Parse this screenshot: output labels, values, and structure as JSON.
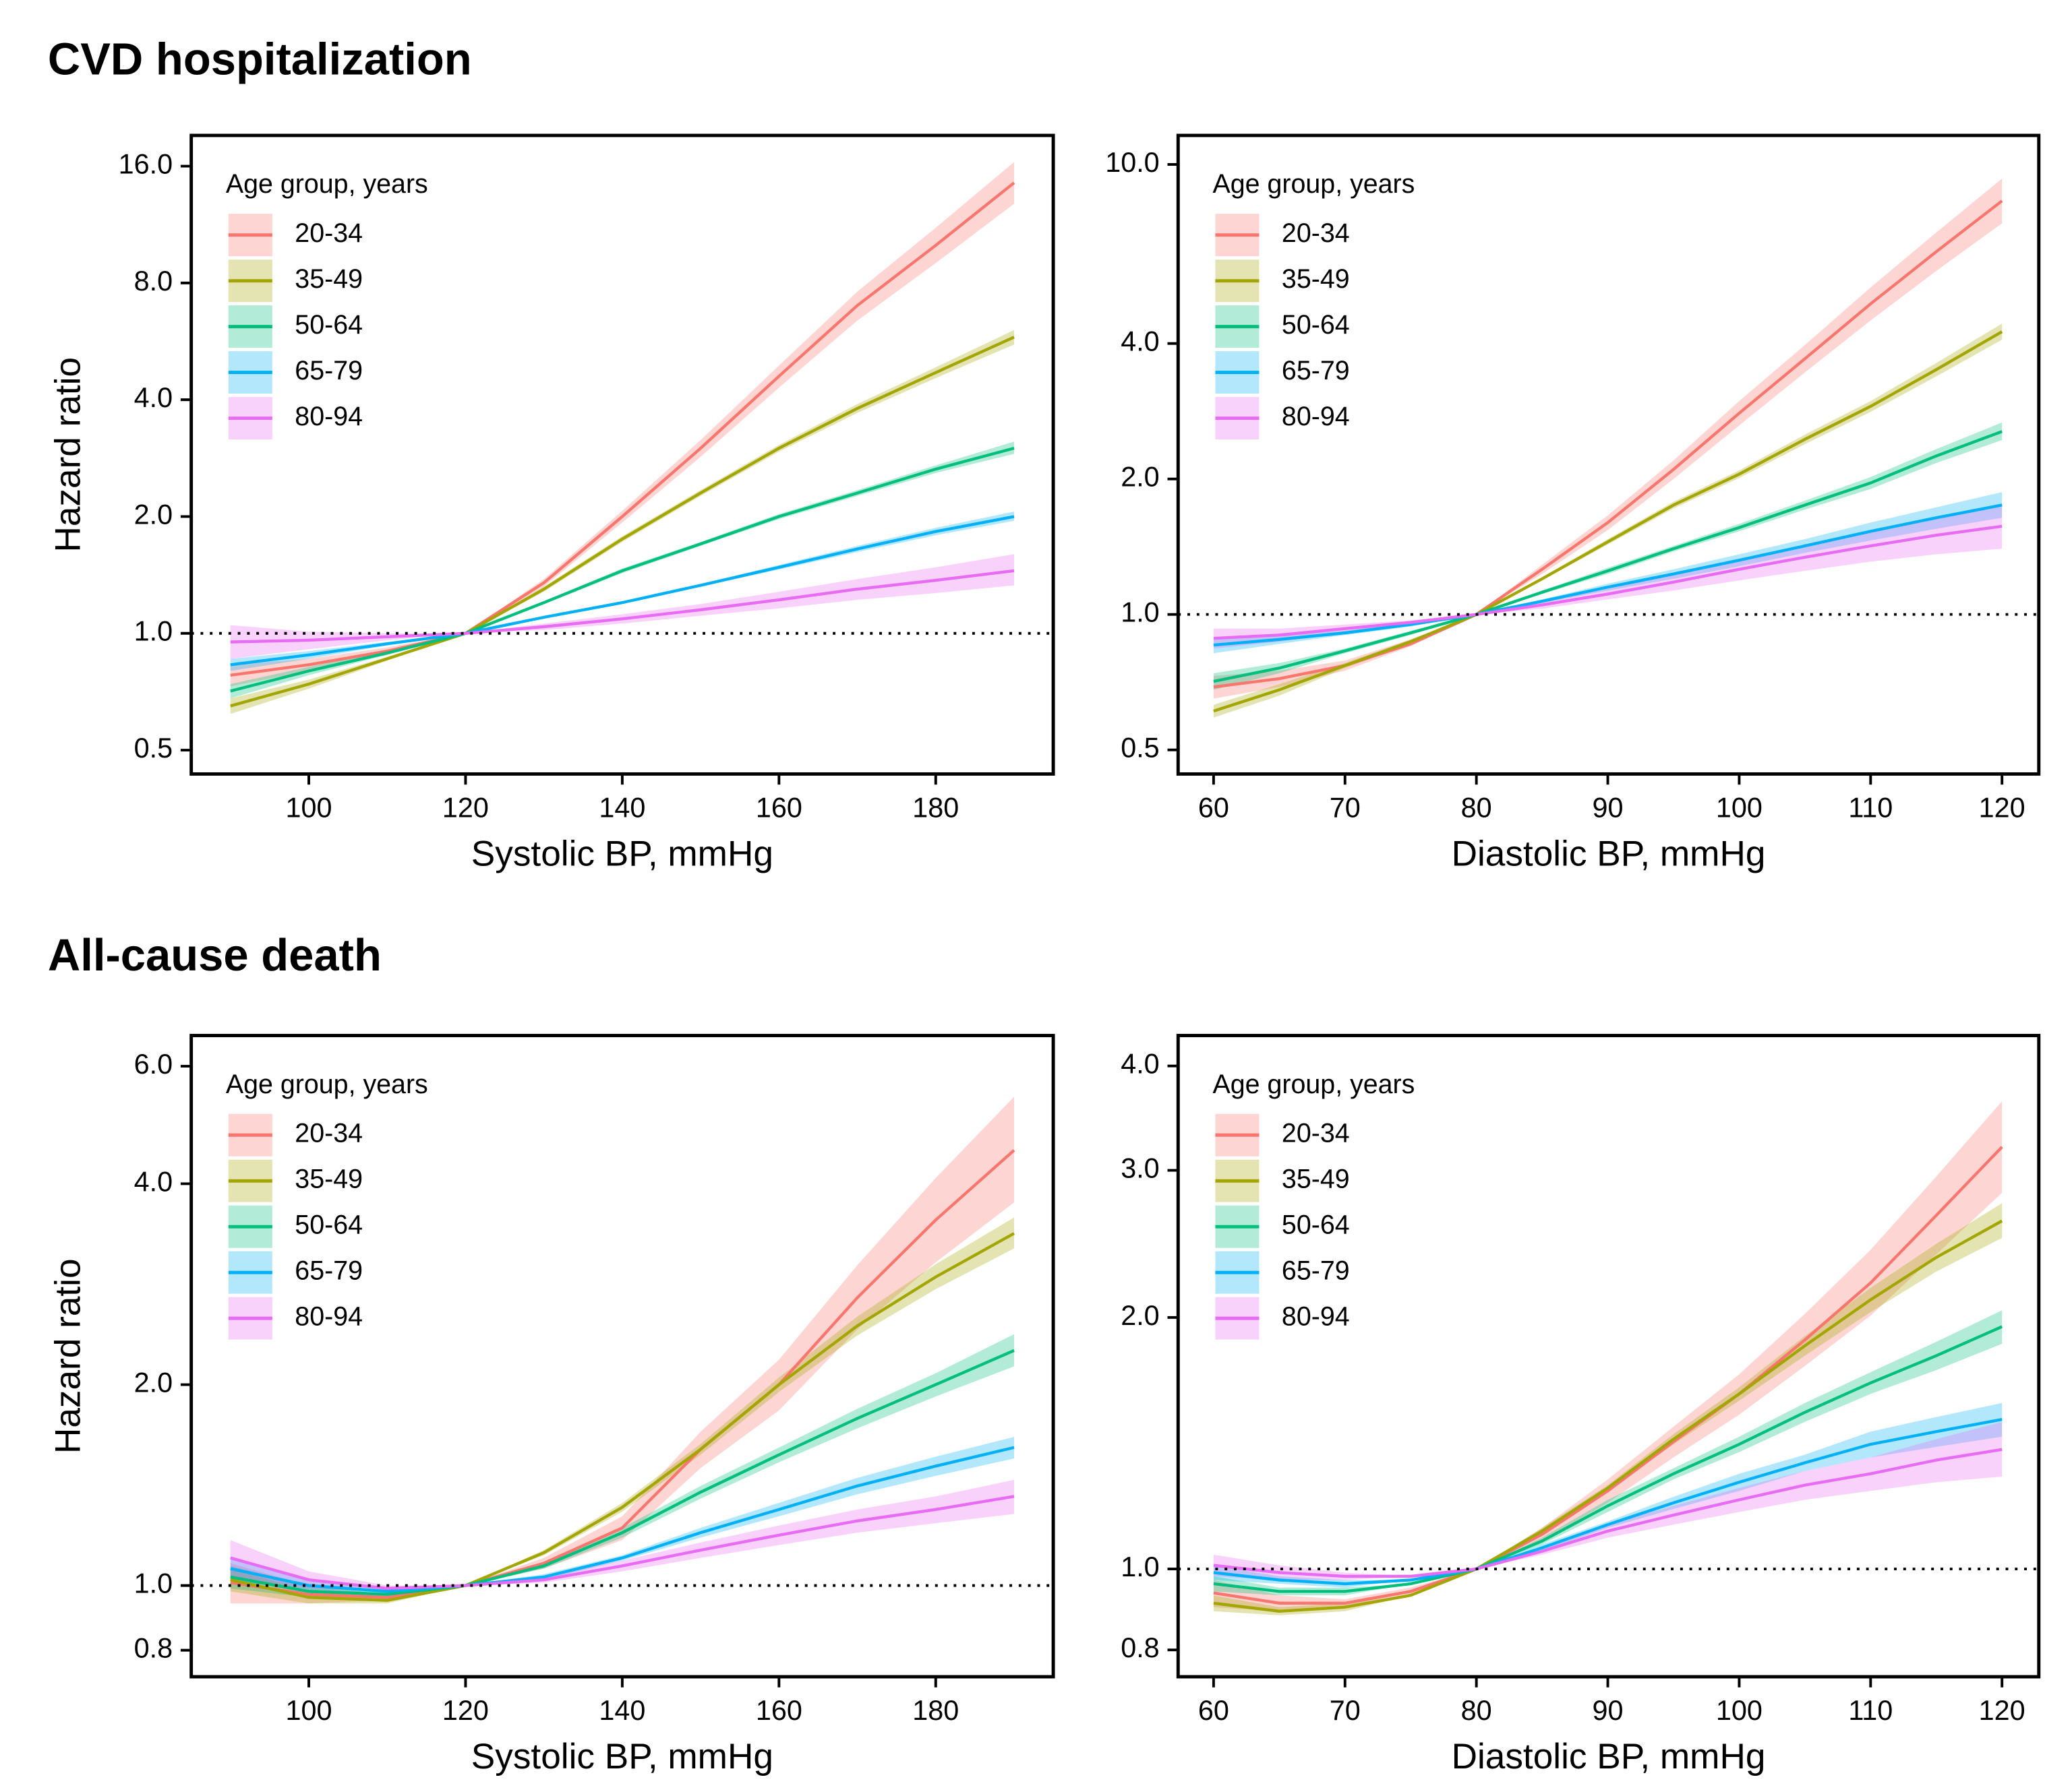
{
  "section_titles": [
    "CVD hospitalization",
    "All-cause death"
  ],
  "chart_data": [
    {
      "type": "line",
      "y_scale": "log",
      "ref_line": 1,
      "x_label": "Systolic BP, mmHg",
      "y_label": "Hazard ratio",
      "legend_title": "Age group, years",
      "x": [
        90,
        100,
        110,
        120,
        130,
        140,
        150,
        160,
        170,
        180,
        190
      ],
      "xlim": [
        85,
        195
      ],
      "xticks": [
        100,
        120,
        140,
        160,
        180
      ],
      "ylim": [
        0.434,
        19.2
      ],
      "yticks": [
        0.5,
        {
          "value": 1,
          "label": "1.0"
        },
        {
          "value": 2,
          "label": "2.0"
        },
        {
          "value": 4,
          "label": "4.0"
        },
        {
          "value": 8,
          "label": "8.0"
        },
        {
          "value": 16,
          "label": "16.0"
        }
      ],
      "series": [
        {
          "name": "20-34",
          "color": "#F8766D",
          "values": [
            0.78,
            0.83,
            0.9,
            1,
            1.35,
            2.0,
            3.0,
            4.6,
            7.0,
            10.0,
            14.5
          ],
          "lower": [
            0.73,
            0.8,
            0.88,
            1,
            1.32,
            1.93,
            2.85,
            4.3,
            6.4,
            9.0,
            12.8
          ],
          "upper": [
            0.83,
            0.86,
            0.92,
            1,
            1.38,
            2.07,
            3.15,
            4.9,
            7.6,
            11.1,
            16.4
          ]
        },
        {
          "name": "35-49",
          "color": "#A3A500",
          "values": [
            0.65,
            0.74,
            0.86,
            1,
            1.3,
            1.75,
            2.3,
            3.0,
            3.8,
            4.7,
            5.8
          ],
          "lower": [
            0.62,
            0.72,
            0.85,
            1,
            1.28,
            1.72,
            2.26,
            2.94,
            3.7,
            4.55,
            5.55
          ],
          "upper": [
            0.68,
            0.76,
            0.87,
            1,
            1.32,
            1.78,
            2.34,
            3.06,
            3.9,
            4.85,
            6.05
          ]
        },
        {
          "name": "50-64",
          "color": "#00BF7D",
          "values": [
            0.71,
            0.8,
            0.89,
            1,
            1.2,
            1.45,
            1.7,
            2.0,
            2.3,
            2.65,
            3.0
          ],
          "lower": [
            0.68,
            0.78,
            0.88,
            1,
            1.19,
            1.43,
            1.68,
            1.97,
            2.26,
            2.59,
            2.9
          ],
          "upper": [
            0.74,
            0.82,
            0.9,
            1,
            1.21,
            1.47,
            1.72,
            2.03,
            2.34,
            2.71,
            3.12
          ]
        },
        {
          "name": "65-79",
          "color": "#00B0F6",
          "values": [
            0.83,
            0.88,
            0.94,
            1,
            1.1,
            1.2,
            1.33,
            1.48,
            1.65,
            1.83,
            2.0
          ],
          "lower": [
            0.8,
            0.86,
            0.93,
            1,
            1.09,
            1.19,
            1.32,
            1.46,
            1.62,
            1.79,
            1.95
          ],
          "upper": [
            0.86,
            0.9,
            0.95,
            1,
            1.11,
            1.21,
            1.34,
            1.5,
            1.68,
            1.87,
            2.06
          ]
        },
        {
          "name": "80-94",
          "color": "#E76BF3",
          "values": [
            0.95,
            0.96,
            0.98,
            1,
            1.04,
            1.09,
            1.15,
            1.22,
            1.3,
            1.37,
            1.45
          ],
          "lower": [
            0.86,
            0.91,
            0.96,
            1,
            1.02,
            1.06,
            1.11,
            1.16,
            1.22,
            1.27,
            1.33
          ],
          "upper": [
            1.05,
            1.01,
            1.0,
            1,
            1.06,
            1.12,
            1.19,
            1.28,
            1.38,
            1.48,
            1.6
          ]
        }
      ]
    },
    {
      "type": "line",
      "y_scale": "log",
      "ref_line": 1,
      "x_label": "Diastolic BP, mmHg",
      "legend_title": "Age group, years",
      "x": [
        60,
        65,
        70,
        75,
        80,
        85,
        90,
        95,
        100,
        105,
        110,
        115,
        120
      ],
      "xlim": [
        57.3,
        122.8
      ],
      "xticks": [
        60,
        70,
        80,
        90,
        100,
        110,
        120
      ],
      "ylim": [
        0.442,
        11.6
      ],
      "yticks": [
        0.5,
        {
          "value": 1,
          "label": "1.0"
        },
        {
          "value": 2,
          "label": "2.0"
        },
        {
          "value": 4,
          "label": "4.0"
        },
        {
          "value": 10,
          "label": "10.0"
        }
      ],
      "series": [
        {
          "name": "20-34",
          "color": "#F8766D",
          "values": [
            0.69,
            0.72,
            0.77,
            0.86,
            1,
            1.26,
            1.6,
            2.1,
            2.8,
            3.7,
            4.9,
            6.4,
            8.3
          ],
          "lower": [
            0.65,
            0.69,
            0.75,
            0.85,
            1,
            1.23,
            1.54,
            2.0,
            2.63,
            3.45,
            4.5,
            5.8,
            7.4
          ],
          "upper": [
            0.73,
            0.75,
            0.79,
            0.88,
            1,
            1.29,
            1.66,
            2.2,
            2.98,
            3.97,
            5.33,
            7.06,
            9.3
          ]
        },
        {
          "name": "35-49",
          "color": "#A3A500",
          "values": [
            0.61,
            0.68,
            0.77,
            0.87,
            1,
            1.2,
            1.45,
            1.75,
            2.05,
            2.45,
            2.9,
            3.5,
            4.25
          ],
          "lower": [
            0.59,
            0.66,
            0.76,
            0.86,
            1,
            1.19,
            1.43,
            1.72,
            2.01,
            2.39,
            2.82,
            3.38,
            4.08
          ],
          "upper": [
            0.63,
            0.7,
            0.78,
            0.88,
            1,
            1.21,
            1.47,
            1.78,
            2.09,
            2.51,
            2.98,
            3.62,
            4.43
          ]
        },
        {
          "name": "50-64",
          "color": "#00BF7D",
          "values": [
            0.71,
            0.76,
            0.83,
            0.91,
            1,
            1.12,
            1.25,
            1.4,
            1.56,
            1.75,
            1.96,
            2.25,
            2.55
          ],
          "lower": [
            0.68,
            0.74,
            0.82,
            0.9,
            1,
            1.11,
            1.23,
            1.38,
            1.53,
            1.71,
            1.9,
            2.17,
            2.44
          ],
          "upper": [
            0.74,
            0.78,
            0.84,
            0.92,
            1,
            1.13,
            1.27,
            1.42,
            1.59,
            1.79,
            2.02,
            2.33,
            2.67
          ]
        },
        {
          "name": "65-79",
          "color": "#00B0F6",
          "values": [
            0.855,
            0.88,
            0.91,
            0.95,
            1,
            1.07,
            1.15,
            1.23,
            1.32,
            1.42,
            1.53,
            1.64,
            1.75
          ],
          "lower": [
            0.82,
            0.86,
            0.9,
            0.94,
            1,
            1.06,
            1.13,
            1.2,
            1.28,
            1.37,
            1.46,
            1.55,
            1.64
          ],
          "upper": [
            0.89,
            0.9,
            0.92,
            0.96,
            1,
            1.08,
            1.17,
            1.26,
            1.36,
            1.47,
            1.6,
            1.73,
            1.87
          ]
        },
        {
          "name": "80-94",
          "color": "#E76BF3",
          "values": [
            0.885,
            0.9,
            0.93,
            0.96,
            1,
            1.05,
            1.11,
            1.18,
            1.26,
            1.34,
            1.42,
            1.5,
            1.57
          ],
          "lower": [
            0.84,
            0.87,
            0.91,
            0.95,
            1,
            1.03,
            1.08,
            1.13,
            1.19,
            1.25,
            1.31,
            1.36,
            1.4
          ],
          "upper": [
            0.93,
            0.93,
            0.95,
            0.97,
            1,
            1.07,
            1.14,
            1.23,
            1.33,
            1.43,
            1.54,
            1.65,
            1.76
          ]
        }
      ]
    },
    {
      "type": "line",
      "y_scale": "log",
      "ref_line": 1,
      "x_label": "Systolic BP, mmHg",
      "y_label": "Hazard ratio",
      "legend_title": "Age group, years",
      "x": [
        90,
        100,
        110,
        120,
        130,
        140,
        150,
        160,
        170,
        180,
        190
      ],
      "xlim": [
        85,
        195
      ],
      "xticks": [
        100,
        120,
        140,
        160,
        180
      ],
      "ylim": [
        0.73,
        6.67
      ],
      "yticks": [
        0.8,
        {
          "value": 1,
          "label": "1.0"
        },
        {
          "value": 2,
          "label": "2.0"
        },
        {
          "value": 4,
          "label": "4.0"
        },
        {
          "value": 6,
          "label": "6.0"
        }
      ],
      "series": [
        {
          "name": "20-34",
          "color": "#F8766D",
          "values": [
            1.01,
            0.97,
            0.96,
            1,
            1.08,
            1.22,
            1.6,
            2.0,
            2.7,
            3.53,
            4.49
          ],
          "lower": [
            0.94,
            0.94,
            0.95,
            1,
            1.06,
            1.17,
            1.5,
            1.83,
            2.42,
            3.05,
            3.75
          ],
          "upper": [
            1.08,
            1.0,
            0.97,
            1,
            1.1,
            1.27,
            1.7,
            2.18,
            3.02,
            4.08,
            5.4
          ]
        },
        {
          "name": "35-49",
          "color": "#A3A500",
          "values": [
            1.02,
            0.96,
            0.95,
            1,
            1.12,
            1.31,
            1.6,
            2.0,
            2.45,
            2.9,
            3.37
          ],
          "lower": [
            0.98,
            0.94,
            0.94,
            1,
            1.11,
            1.29,
            1.57,
            1.95,
            2.37,
            2.78,
            3.2
          ],
          "upper": [
            1.06,
            0.98,
            0.96,
            1,
            1.13,
            1.33,
            1.63,
            2.05,
            2.53,
            3.03,
            3.56
          ]
        },
        {
          "name": "50-64",
          "color": "#00BF7D",
          "values": [
            1.03,
            0.98,
            0.97,
            1,
            1.07,
            1.2,
            1.38,
            1.57,
            1.78,
            2.0,
            2.25
          ],
          "lower": [
            0.99,
            0.96,
            0.96,
            1,
            1.06,
            1.18,
            1.35,
            1.53,
            1.72,
            1.92,
            2.13
          ],
          "upper": [
            1.07,
            1.0,
            0.98,
            1,
            1.08,
            1.22,
            1.41,
            1.61,
            1.84,
            2.08,
            2.38
          ]
        },
        {
          "name": "65-79",
          "color": "#00B0F6",
          "values": [
            1.06,
            1.0,
            0.98,
            1,
            1.03,
            1.1,
            1.2,
            1.3,
            1.41,
            1.51,
            1.61
          ],
          "lower": [
            1.02,
            0.98,
            0.97,
            1,
            1.02,
            1.09,
            1.18,
            1.27,
            1.37,
            1.46,
            1.55
          ],
          "upper": [
            1.1,
            1.02,
            0.99,
            1,
            1.04,
            1.11,
            1.22,
            1.33,
            1.45,
            1.56,
            1.67
          ]
        },
        {
          "name": "80-94",
          "color": "#E76BF3",
          "values": [
            1.1,
            1.02,
            0.99,
            1,
            1.02,
            1.07,
            1.13,
            1.19,
            1.25,
            1.3,
            1.36
          ],
          "lower": [
            1.03,
            0.99,
            0.98,
            1,
            1.01,
            1.05,
            1.1,
            1.15,
            1.2,
            1.24,
            1.28
          ],
          "upper": [
            1.17,
            1.05,
            1.0,
            1,
            1.03,
            1.09,
            1.16,
            1.23,
            1.3,
            1.36,
            1.44
          ]
        }
      ]
    },
    {
      "type": "line",
      "y_scale": "log",
      "ref_line": 1,
      "x_label": "Diastolic BP, mmHg",
      "legend_title": "Age group, years",
      "x": [
        60,
        65,
        70,
        75,
        80,
        85,
        90,
        95,
        100,
        105,
        110,
        115,
        120
      ],
      "xlim": [
        57.3,
        122.8
      ],
      "xticks": [
        60,
        70,
        80,
        90,
        100,
        110,
        120
      ],
      "ylim": [
        0.743,
        4.35
      ],
      "yticks": [
        0.8,
        {
          "value": 1,
          "label": "1.0"
        },
        {
          "value": 2,
          "label": "2.0"
        },
        {
          "value": 3,
          "label": "3.0"
        },
        {
          "value": 4,
          "label": "4.0"
        }
      ],
      "series": [
        {
          "name": "20-34",
          "color": "#F8766D",
          "values": [
            0.936,
            0.91,
            0.91,
            0.94,
            1,
            1.1,
            1.24,
            1.42,
            1.62,
            1.88,
            2.2,
            2.65,
            3.2
          ],
          "lower": [
            0.9,
            0.89,
            0.9,
            0.93,
            1,
            1.08,
            1.2,
            1.36,
            1.53,
            1.75,
            2.01,
            2.38,
            2.82
          ],
          "upper": [
            0.97,
            0.93,
            0.92,
            0.95,
            1,
            1.12,
            1.28,
            1.48,
            1.71,
            2.02,
            2.41,
            2.95,
            3.63
          ]
        },
        {
          "name": "35-49",
          "color": "#A3A500",
          "values": [
            0.91,
            0.89,
            0.9,
            0.93,
            1,
            1.11,
            1.25,
            1.43,
            1.62,
            1.85,
            2.1,
            2.36,
            2.61
          ],
          "lower": [
            0.89,
            0.88,
            0.89,
            0.93,
            1,
            1.1,
            1.24,
            1.41,
            1.59,
            1.8,
            2.03,
            2.27,
            2.49
          ],
          "upper": [
            0.93,
            0.9,
            0.91,
            0.93,
            1,
            1.12,
            1.26,
            1.45,
            1.65,
            1.9,
            2.17,
            2.45,
            2.74
          ]
        },
        {
          "name": "50-64",
          "color": "#00BF7D",
          "values": [
            0.96,
            0.94,
            0.94,
            0.96,
            1,
            1.08,
            1.19,
            1.3,
            1.41,
            1.54,
            1.67,
            1.8,
            1.95
          ],
          "lower": [
            0.94,
            0.93,
            0.93,
            0.96,
            1,
            1.07,
            1.17,
            1.28,
            1.38,
            1.5,
            1.62,
            1.73,
            1.86
          ],
          "upper": [
            0.98,
            0.95,
            0.95,
            0.96,
            1,
            1.09,
            1.21,
            1.32,
            1.44,
            1.58,
            1.72,
            1.87,
            2.04
          ]
        },
        {
          "name": "65-79",
          "color": "#00B0F6",
          "values": [
            0.99,
            0.97,
            0.96,
            0.97,
            1,
            1.06,
            1.13,
            1.2,
            1.27,
            1.34,
            1.41,
            1.46,
            1.51
          ],
          "lower": [
            0.97,
            0.96,
            0.95,
            0.97,
            1,
            1.05,
            1.12,
            1.18,
            1.24,
            1.31,
            1.36,
            1.4,
            1.44
          ],
          "upper": [
            1.01,
            0.98,
            0.97,
            0.97,
            1,
            1.07,
            1.14,
            1.22,
            1.3,
            1.37,
            1.46,
            1.52,
            1.58
          ]
        },
        {
          "name": "80-94",
          "color": "#E76BF3",
          "values": [
            1.01,
            0.99,
            0.98,
            0.98,
            1,
            1.05,
            1.11,
            1.16,
            1.21,
            1.26,
            1.3,
            1.35,
            1.39
          ],
          "lower": [
            0.98,
            0.97,
            0.97,
            0.98,
            1,
            1.04,
            1.09,
            1.13,
            1.17,
            1.21,
            1.24,
            1.27,
            1.29
          ],
          "upper": [
            1.04,
            1.01,
            0.99,
            0.98,
            1,
            1.06,
            1.13,
            1.19,
            1.25,
            1.31,
            1.36,
            1.43,
            1.5
          ]
        }
      ]
    }
  ]
}
